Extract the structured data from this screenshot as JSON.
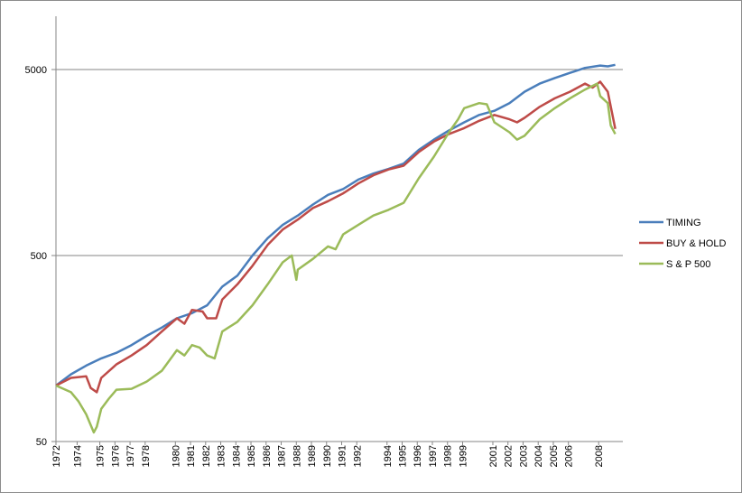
{
  "chart_data": {
    "type": "line",
    "title": "",
    "xlabel": "",
    "ylabel": "",
    "y_scale": "log",
    "ylim": [
      50,
      10000
    ],
    "y_ticks": [
      "50",
      "500",
      "5000"
    ],
    "y_tick_values": [
      50,
      500,
      5000
    ],
    "x_tick_labels": [
      "1972",
      "1974",
      "1975",
      "1976",
      "1977",
      "1978",
      "1980",
      "1981",
      "1982",
      "1983",
      "1984",
      "1985",
      "1986",
      "1987",
      "1988",
      "1989",
      "1990",
      "1991",
      "1992",
      "1994",
      "1995",
      "1996",
      "1997",
      "1998",
      "1999",
      "2001",
      "2002",
      "2003",
      "2004",
      "2005",
      "2006",
      "2008"
    ],
    "x_tick_values": [
      1972.0,
      1973.4,
      1974.9,
      1975.9,
      1976.9,
      1977.9,
      1979.9,
      1980.9,
      1981.9,
      1982.9,
      1983.9,
      1984.9,
      1985.9,
      1986.9,
      1987.9,
      1988.9,
      1989.9,
      1990.9,
      1991.9,
      1993.9,
      1994.9,
      1995.9,
      1996.9,
      1997.9,
      1998.9,
      2000.9,
      2001.9,
      2002.9,
      2003.9,
      2004.9,
      2005.9,
      2007.9
    ],
    "xlim": [
      1972.0,
      2009.5
    ],
    "grid": "horizontal major only",
    "legend_position": "right",
    "series": [
      {
        "name": "TIMING",
        "color": "#4a7ebb",
        "x": [
          1972,
          1973,
          1974,
          1975,
          1976,
          1977,
          1978,
          1979,
          1980,
          1981,
          1982,
          1983,
          1984,
          1985,
          1986,
          1987,
          1988,
          1989,
          1990,
          1991,
          1992,
          1993,
          1994,
          1995,
          1996,
          1997,
          1998,
          1999,
          2000,
          2001,
          2002,
          2003,
          2004,
          2005,
          2006,
          2007,
          2008,
          2008.5,
          2009
        ],
        "y": [
          100,
          115,
          128,
          140,
          150,
          165,
          185,
          205,
          230,
          245,
          270,
          340,
          390,
          500,
          620,
          730,
          820,
          940,
          1060,
          1140,
          1280,
          1380,
          1460,
          1560,
          1850,
          2100,
          2350,
          2600,
          2850,
          3000,
          3300,
          3800,
          4200,
          4500,
          4800,
          5100,
          5250,
          5200,
          5300
        ]
      },
      {
        "name": "BUY & HOLD",
        "color": "#be4b48",
        "x": [
          1972,
          1973,
          1974,
          1974.3,
          1974.7,
          1975,
          1976,
          1977,
          1978,
          1979,
          1980,
          1980.5,
          1981,
          1981.7,
          1982,
          1982.6,
          1983,
          1984,
          1985,
          1986,
          1987,
          1988,
          1989,
          1990,
          1991,
          1992,
          1993,
          1994,
          1995,
          1996,
          1997,
          1998,
          1999,
          2000,
          2001,
          2002,
          2002.5,
          2003,
          2004,
          2005,
          2006,
          2007,
          2007.5,
          2008,
          2008.5,
          2009
        ],
        "y": [
          100,
          110,
          112,
          97,
          92,
          110,
          130,
          145,
          165,
          195,
          230,
          215,
          255,
          250,
          230,
          230,
          290,
          350,
          440,
          570,
          690,
          780,
          900,
          980,
          1080,
          1220,
          1350,
          1450,
          1520,
          1800,
          2050,
          2250,
          2420,
          2650,
          2850,
          2700,
          2600,
          2750,
          3150,
          3500,
          3800,
          4200,
          4000,
          4300,
          3800,
          2400
        ]
      },
      {
        "name": "S & P 500",
        "color": "#9bbb59",
        "x": [
          1972,
          1973,
          1973.5,
          1974,
          1974.5,
          1974.7,
          1975,
          1975.5,
          1976,
          1977,
          1978,
          1979,
          1980,
          1980.5,
          1981,
          1981.5,
          1982,
          1982.5,
          1983,
          1984,
          1985,
          1986,
          1987,
          1987.6,
          1987.9,
          1988,
          1989,
          1990,
          1990.5,
          1991,
          1992,
          1993,
          1994,
          1995,
          1996,
          1997,
          1998,
          1998.6,
          1999,
          2000,
          2000.5,
          2001,
          2002,
          2002.5,
          2003,
          2004,
          2005,
          2006,
          2007,
          2007.8,
          2008,
          2008.5,
          2008.7,
          2009
        ],
        "y": [
          100,
          92,
          82,
          70,
          56,
          60,
          75,
          85,
          95,
          96,
          105,
          120,
          155,
          145,
          165,
          160,
          145,
          140,
          195,
          220,
          270,
          350,
          460,
          500,
          370,
          420,
          480,
          560,
          540,
          650,
          730,
          820,
          880,
          960,
          1300,
          1700,
          2300,
          2700,
          3100,
          3300,
          3250,
          2600,
          2300,
          2100,
          2200,
          2700,
          3100,
          3500,
          3900,
          4200,
          3600,
          3300,
          2500,
          2250
        ]
      }
    ]
  }
}
